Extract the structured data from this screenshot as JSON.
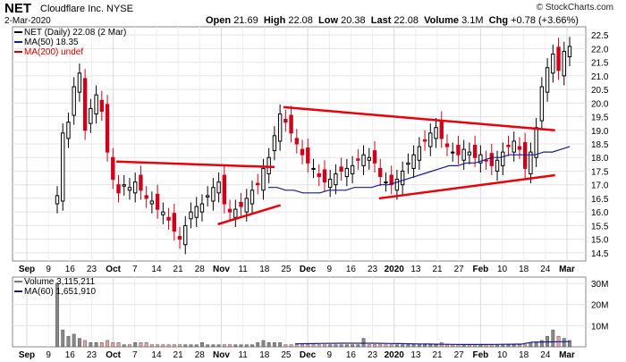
{
  "header": {
    "symbol": "NET",
    "company": "Cloudflare Inc.",
    "exchange": "NYSE",
    "date": "2-Mar-2020",
    "credit": "© StockCharts.com",
    "open_label": "Open",
    "open": "21.69",
    "high_label": "High",
    "high": "22.08",
    "low_label": "Low",
    "low": "20.38",
    "last_label": "Last",
    "last": "22.08",
    "volume_label": "Volume",
    "volume": "3.1M",
    "chg_label": "Chg",
    "chg": "+0.78 (+3.66%)"
  },
  "legend": {
    "price": "NET (Daily) 22.08 (2 Mar)",
    "ma50": "MA(50) 18.35",
    "ma200": "MA(200) undef",
    "volume": "Volume 3,115,211",
    "vol_ma": "MA(60) 1,651,910"
  },
  "colors": {
    "up": "#000000",
    "down": "#d0021b",
    "ma50": "#1a1a8c",
    "trend": "#e8000b",
    "vol_up": "#888888",
    "vol_down": "#e8a0a0",
    "accent": "#7a0000"
  },
  "chart_data": [
    {
      "type": "candlestick",
      "title": "NET (Daily) 22.08 (2 Mar)",
      "ylim": [
        14.2,
        22.8
      ],
      "yticks": [
        "22.5",
        "22.0",
        "21.5",
        "21.0",
        "20.5",
        "20.0",
        "19.5",
        "19.0",
        "18.5",
        "18.0",
        "17.5",
        "17.0",
        "16.5",
        "16.0",
        "15.5",
        "15.0",
        "14.5"
      ],
      "xticks": [
        "Sep",
        "9",
        "16",
        "23",
        "Oct",
        "7",
        "14",
        "21",
        "28",
        "Nov",
        "11",
        "18",
        "25",
        "Dec",
        "9",
        "16",
        "23",
        "2020",
        "13",
        "21",
        "27",
        "Feb",
        "10",
        "18",
        "24",
        "Mar"
      ],
      "close": [
        16.6,
        18.9,
        19.3,
        20.6,
        21.1,
        19.0,
        19.8,
        20.3,
        19.7,
        18.2,
        17.2,
        16.7,
        17.0,
        16.9,
        17.1,
        16.8,
        16.5,
        16.4,
        16.1,
        16.0,
        15.7,
        15.3,
        15.0,
        15.5,
        16.0,
        16.2,
        16.3,
        16.6,
        16.9,
        17.1,
        16.3,
        16.0,
        16.1,
        16.2,
        16.5,
        16.8,
        17.0,
        17.6,
        18.0,
        18.8,
        19.6,
        19.3,
        18.9,
        18.5,
        18.1,
        17.8,
        17.6,
        17.3,
        17.1,
        17.2,
        17.4,
        17.5,
        17.6,
        17.7,
        17.9,
        18.1,
        18.0,
        17.8,
        17.3,
        17.1,
        17.0,
        17.2,
        17.5,
        17.8,
        18.1,
        18.4,
        18.6,
        18.9,
        19.1,
        18.7,
        18.4,
        18.2,
        18.1,
        18.3,
        18.2,
        18.0,
        18.1,
        17.9,
        17.7,
        17.9,
        18.2,
        18.4,
        18.6,
        18.3,
        17.6,
        18.2,
        19.1,
        20.6,
        21.3,
        21.8,
        21.2,
        21.9,
        22.08
      ],
      "ma50": [
        16.9,
        16.9,
        16.8,
        16.8,
        16.7,
        16.7,
        16.7,
        16.8,
        16.8,
        16.8,
        16.9,
        16.9,
        16.9,
        17.0,
        17.0,
        17.1,
        17.2,
        17.3,
        17.4,
        17.5,
        17.6,
        17.7,
        17.7,
        17.8,
        17.8,
        17.9,
        18.0,
        18.0,
        18.1,
        18.1,
        18.1,
        18.1,
        18.2,
        18.2,
        18.3,
        18.4
      ],
      "trendlines": [
        {
          "x1": "2019-10-03",
          "y1": 17.85,
          "x2": "2019-11-25",
          "y2": 17.65
        },
        {
          "x1": "2019-11-06",
          "y1": 15.55,
          "x2": "2019-11-27",
          "y2": 16.25
        },
        {
          "x1": "2019-11-28",
          "y1": 19.85,
          "x2": "2020-02-27",
          "y2": 19.0
        },
        {
          "x1": "2019-12-30",
          "y1": 16.5,
          "x2": "2020-02-27",
          "y2": 17.35
        }
      ]
    },
    {
      "type": "bar",
      "title": "Volume 3,115,211",
      "yticks": [
        "30M",
        "20M",
        "10M"
      ],
      "ylim": [
        0,
        33
      ],
      "volume_m": [
        30,
        8,
        5,
        6,
        4,
        3,
        2,
        2,
        2,
        3,
        2,
        2,
        1,
        1,
        2,
        2,
        2,
        1,
        1,
        1,
        1,
        1,
        1,
        1,
        1,
        1,
        2,
        1,
        1,
        1,
        1,
        1,
        1,
        1,
        1,
        1,
        2,
        3,
        2,
        2,
        2,
        1,
        1,
        1,
        1,
        1,
        1,
        1,
        1,
        1,
        1,
        1,
        1,
        1,
        1,
        4,
        1,
        1,
        1,
        1,
        1,
        1,
        1,
        1,
        1,
        1,
        1,
        1,
        1,
        2,
        1,
        1,
        1,
        1,
        1,
        1,
        1,
        1,
        1,
        1,
        1,
        1,
        1,
        1,
        1,
        2,
        2,
        3,
        5,
        8,
        5,
        4,
        3
      ]
    }
  ]
}
